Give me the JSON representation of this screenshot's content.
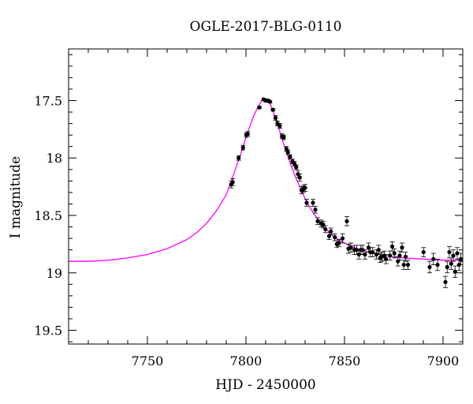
{
  "chart_data": {
    "type": "scatter",
    "title": "OGLE-2017-BLG-0110",
    "xlabel": "HJD - 2450000",
    "ylabel": "I magnitude",
    "xlim": [
      7710,
      7910
    ],
    "ylim": [
      19.62,
      17.05
    ],
    "y_inverted": true,
    "x_ticks": [
      7750,
      7800,
      7850,
      7900
    ],
    "x_tick_labels": [
      "7750",
      "7800",
      "7850",
      "7900"
    ],
    "y_ticks": [
      17.5,
      18,
      18.5,
      19,
      19.5
    ],
    "y_tick_labels": [
      "17.5",
      "18",
      "18.5",
      "19",
      "19.5"
    ],
    "grid": false,
    "colors": {
      "model": "#ff00ff",
      "points": "#000000",
      "axes": "#000000"
    },
    "series": [
      {
        "kind": "points_with_errorbars",
        "x": [
          7792.5,
          7793.3,
          7796.3,
          7798.5,
          7800.2,
          7800.9,
          7806.8,
          7809.0,
          7810.1,
          7811.2,
          7812.2,
          7813.7,
          7815.0,
          7816.0,
          7817.2,
          7818.3,
          7819.2,
          7820.5,
          7821.3,
          7822.4,
          7823.6,
          7824.6,
          7825.5,
          7826.4,
          7827.3,
          7828.2,
          7829.1,
          7830.0,
          7830.8,
          7834.0,
          7835.2,
          7836.4,
          7838.1,
          7839.2,
          7840.3,
          7842.2,
          7843.1,
          7845.1,
          7846.1,
          7847.2,
          7849.0,
          7851.2,
          7852.0,
          7853.2,
          7855.0,
          7856.2,
          7857.3,
          7858.3,
          7859.2,
          7860.4,
          7862.2,
          7863.1,
          7864.3,
          7866.2,
          7867.3,
          7868.1,
          7869.0,
          7870.2,
          7871.1,
          7873.1,
          7874.2,
          7875.3,
          7877.1,
          7878.0,
          7879.2,
          7880.1,
          7881.0,
          7882.2,
          7890.1,
          7893.2,
          7895.1,
          7897.2,
          7901.2,
          7902.1,
          7903.2,
          7904.1,
          7905.2,
          7906.1,
          7907.2,
          7908.1,
          7909.0
        ],
        "y": [
          18.23,
          18.21,
          18.0,
          17.91,
          17.8,
          17.79,
          17.56,
          17.49,
          17.5,
          17.5,
          17.51,
          17.58,
          17.65,
          17.7,
          17.72,
          17.81,
          17.82,
          17.92,
          17.95,
          17.99,
          18.03,
          18.05,
          18.08,
          18.14,
          18.17,
          18.28,
          18.27,
          18.26,
          18.39,
          18.39,
          18.45,
          18.55,
          18.57,
          18.58,
          18.62,
          18.68,
          18.64,
          18.69,
          18.75,
          18.74,
          18.7,
          18.55,
          18.79,
          18.78,
          18.8,
          18.8,
          18.84,
          18.8,
          18.8,
          18.84,
          18.78,
          18.82,
          18.82,
          18.84,
          18.8,
          18.87,
          18.86,
          18.85,
          18.88,
          18.85,
          18.77,
          18.83,
          18.9,
          18.85,
          18.78,
          18.93,
          18.86,
          18.93,
          18.82,
          18.95,
          18.88,
          18.93,
          19.08,
          18.95,
          18.82,
          18.92,
          18.85,
          18.99,
          18.83,
          18.93,
          18.88
        ],
        "yerr": [
          0.03,
          0.03,
          0.02,
          0.02,
          0.02,
          0.02,
          0.01,
          0.01,
          0.01,
          0.01,
          0.01,
          0.01,
          0.02,
          0.02,
          0.02,
          0.02,
          0.02,
          0.02,
          0.02,
          0.02,
          0.02,
          0.02,
          0.02,
          0.03,
          0.03,
          0.03,
          0.03,
          0.03,
          0.03,
          0.03,
          0.03,
          0.03,
          0.03,
          0.03,
          0.03,
          0.03,
          0.03,
          0.03,
          0.03,
          0.03,
          0.04,
          0.04,
          0.04,
          0.04,
          0.04,
          0.04,
          0.04,
          0.04,
          0.04,
          0.04,
          0.04,
          0.04,
          0.04,
          0.04,
          0.04,
          0.04,
          0.04,
          0.04,
          0.04,
          0.04,
          0.04,
          0.04,
          0.04,
          0.04,
          0.04,
          0.04,
          0.04,
          0.04,
          0.04,
          0.05,
          0.05,
          0.05,
          0.05,
          0.05,
          0.05,
          0.05,
          0.05,
          0.05,
          0.05,
          0.05,
          0.05
        ]
      },
      {
        "kind": "model_curve",
        "x": [
          7710,
          7720,
          7730,
          7740,
          7750,
          7760,
          7770,
          7775,
          7780,
          7785,
          7790,
          7794,
          7798,
          7801,
          7804,
          7806,
          7808,
          7809,
          7810,
          7811,
          7812,
          7813,
          7815,
          7817,
          7819,
          7821,
          7823,
          7825,
          7828,
          7831,
          7835,
          7840,
          7845,
          7850,
          7855,
          7860,
          7865,
          7870,
          7880,
          7890,
          7900,
          7910
        ],
        "y": [
          18.9,
          18.9,
          18.89,
          18.87,
          18.84,
          18.79,
          18.71,
          18.65,
          18.57,
          18.46,
          18.32,
          18.13,
          17.93,
          17.77,
          17.63,
          17.56,
          17.5,
          17.49,
          17.49,
          17.5,
          17.52,
          17.56,
          17.65,
          17.76,
          17.87,
          17.97,
          18.07,
          18.16,
          18.28,
          18.39,
          18.5,
          18.61,
          18.69,
          18.74,
          18.78,
          18.81,
          18.83,
          18.85,
          18.87,
          18.88,
          18.89,
          18.89
        ]
      }
    ]
  }
}
